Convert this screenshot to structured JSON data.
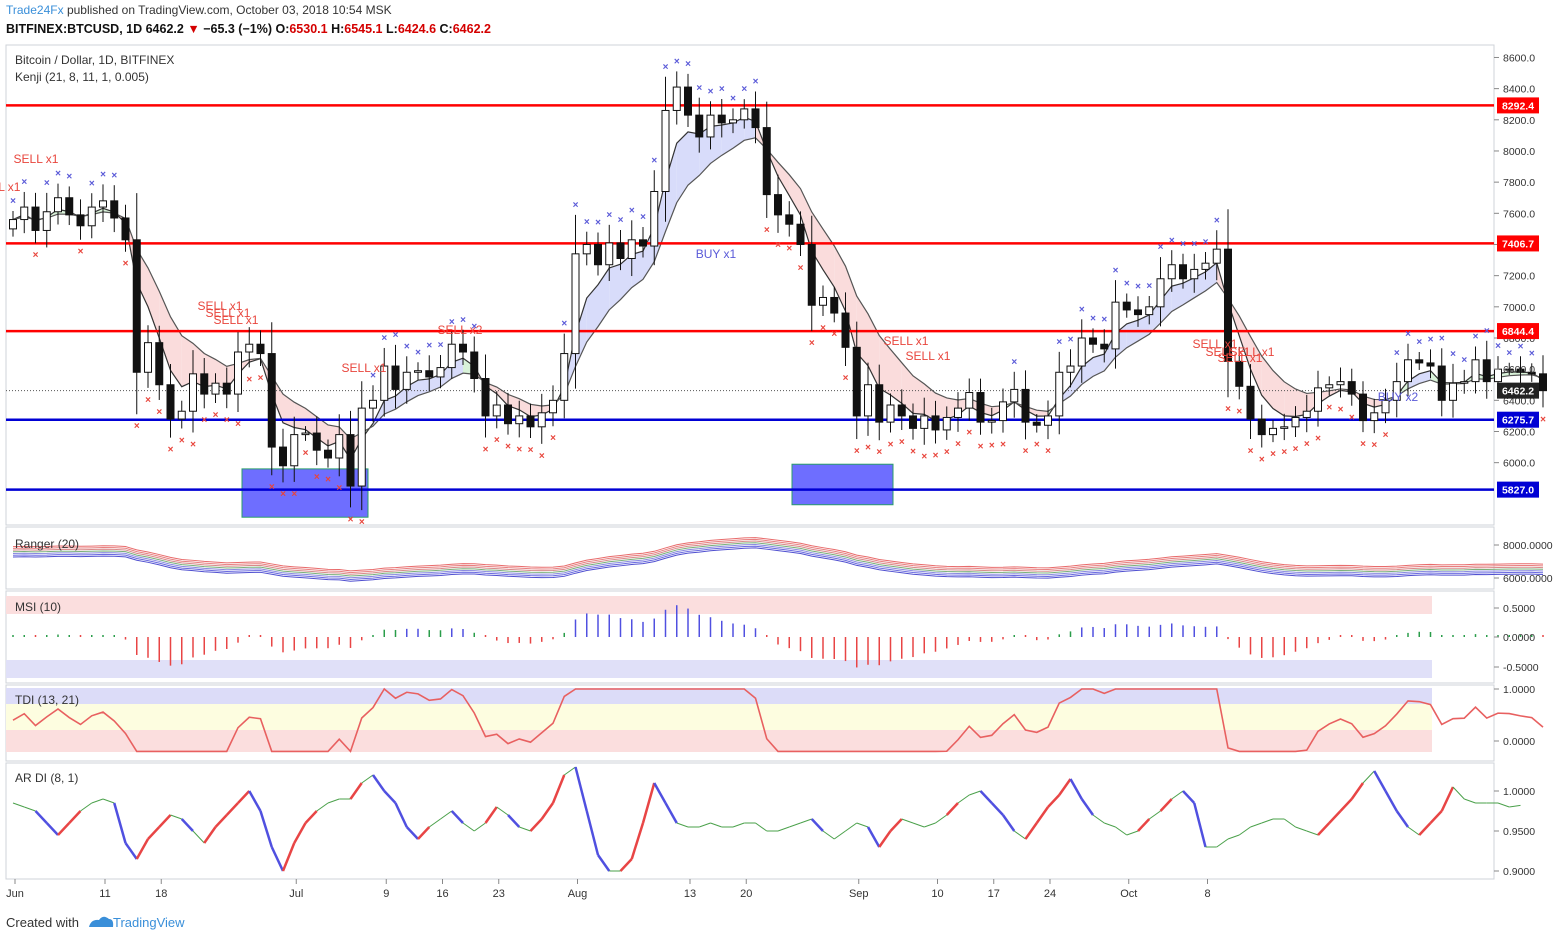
{
  "header": {
    "brand": "Trade24Fx",
    "published": "published on TradingView.com, October 03, 2018 10:54 MSK",
    "symbol": "BITFINEX:BTCUSD, 1D",
    "last": "6462.2",
    "change": "−65.3 (−1%)",
    "o_label": "O:",
    "o": "6530.1",
    "h_label": "H:",
    "h": "6545.1",
    "l_label": "L:",
    "l": "6424.6",
    "c_label": "C:",
    "c": "6462.2"
  },
  "footer": {
    "created": "Created with",
    "tv": "TradingView"
  },
  "icons": [
    "tradingview-cloud-icon"
  ],
  "colors": {
    "resistance": "#ff0000",
    "support": "#0000d4",
    "sell": "#e8453c",
    "buy": "#5a5ad8",
    "box": "#5555ff"
  },
  "chart_data": [
    {
      "type": "candlestick",
      "title": "Bitcoin / Dollar, 1D, BITFINEX",
      "indicator": "Kenji (21, 8, 11, 1, 0.005)",
      "x_ticks": [
        "Jun",
        "11",
        "18",
        "Jul",
        "9",
        "16",
        "23",
        "Aug",
        "13",
        "20",
        "Sep",
        "10",
        "17",
        "24",
        "Oct",
        "8"
      ],
      "y_ticks": [
        "8600.0",
        "8400.0",
        "8200.0",
        "8000.0",
        "7800.0",
        "7600.0",
        "7400.0",
        "7200.0",
        "7000.0",
        "6800.0",
        "6600.0",
        "6400.0",
        "6200.0",
        "6000.0"
      ],
      "ylim": [
        5600,
        8680
      ],
      "levels": [
        {
          "value": 8292.4,
          "label": "8292.4",
          "kind": "resistance"
        },
        {
          "value": 7406.7,
          "label": "7406.7",
          "kind": "resistance"
        },
        {
          "value": 6844.4,
          "label": "6844.4",
          "kind": "resistance"
        },
        {
          "value": 6462.2,
          "label": "6462.2",
          "kind": "last"
        },
        {
          "value": 6275.7,
          "label": "6275.7",
          "kind": "support"
        },
        {
          "value": 5827.0,
          "label": "5827.0",
          "kind": "support"
        }
      ],
      "signals": [
        {
          "text": "SELL x1",
          "kind": "sell"
        },
        {
          "text": "LL x1",
          "kind": "sell"
        },
        {
          "text": "SELL x1",
          "kind": "sell"
        },
        {
          "text": "SELL x1",
          "kind": "sell"
        },
        {
          "text": "SELL x1",
          "kind": "sell"
        },
        {
          "text": "SELL x2",
          "kind": "sell"
        },
        {
          "text": "SELL x1",
          "kind": "sell"
        },
        {
          "text": "BUY x1",
          "kind": "buy"
        },
        {
          "text": "SELL x1",
          "kind": "sell"
        },
        {
          "text": "SELL x1",
          "kind": "sell"
        },
        {
          "text": "SELL x1",
          "kind": "sell"
        },
        {
          "text": "SELL x1",
          "kind": "sell"
        },
        {
          "text": "SELL x1",
          "kind": "sell"
        },
        {
          "text": "SELL x1",
          "kind": "sell"
        },
        {
          "text": "BUY x2",
          "kind": "buy"
        }
      ],
      "closes": [
        7560,
        7640,
        7490,
        7610,
        7700,
        7590,
        7520,
        7640,
        7680,
        7570,
        7430,
        6580,
        6770,
        6500,
        6280,
        6330,
        6570,
        6440,
        6510,
        6440,
        6710,
        6760,
        6700,
        6100,
        5980,
        6180,
        6190,
        6080,
        6030,
        6180,
        5850,
        6350,
        6400,
        6620,
        6470,
        6580,
        6590,
        6550,
        6610,
        6760,
        6710,
        6540,
        6300,
        6370,
        6250,
        6300,
        6230,
        6320,
        6400,
        6700,
        7340,
        7400,
        7270,
        7410,
        7310,
        7430,
        7390,
        7740,
        8260,
        8410,
        8230,
        8090,
        8230,
        8180,
        8200,
        8270,
        8150,
        7720,
        7590,
        7530,
        7400,
        7010,
        7060,
        6960,
        6740,
        6300,
        6500,
        6260,
        6370,
        6300,
        6220,
        6300,
        6210,
        6290,
        6350,
        6450,
        6260,
        6270,
        6390,
        6470,
        6260,
        6240,
        6300,
        6580,
        6620,
        6800,
        6760,
        6730,
        7030,
        6980,
        6950,
        7000,
        7180,
        7270,
        7180,
        7240,
        7280,
        7370,
        6650,
        6490,
        6280,
        6180,
        6220,
        6230,
        6290,
        6330,
        6480,
        6500,
        6520,
        6440,
        6270,
        6320,
        6400,
        6520,
        6660,
        6640,
        6620,
        6400,
        6510,
        6520,
        6660,
        6520,
        6600,
        6600,
        6580,
        6570,
        6462
      ]
    },
    {
      "type": "line",
      "title": "Ranger (20)",
      "y_ticks": [
        "8000.0000",
        "6000.0000"
      ]
    },
    {
      "type": "bar",
      "title": "MSI (10)",
      "y_ticks": [
        "0.5000",
        "0.0000",
        "-0.5000"
      ]
    },
    {
      "type": "line",
      "title": "TDI (13, 21)",
      "y_ticks": [
        "1.0000",
        "0.0000"
      ]
    },
    {
      "type": "line",
      "title": "AR DI (8, 1)",
      "y_ticks": [
        "1.0000",
        "0.9500",
        "0.9000"
      ],
      "ylim": [
        0.89,
        1.035
      ],
      "values": [
        0.985,
        0.98,
        0.975,
        0.96,
        0.945,
        0.96,
        0.975,
        0.985,
        0.99,
        0.985,
        0.935,
        0.915,
        0.94,
        0.955,
        0.97,
        0.965,
        0.95,
        0.935,
        0.955,
        0.97,
        0.985,
        1.0,
        0.975,
        0.93,
        0.9,
        0.935,
        0.96,
        0.975,
        0.985,
        0.99,
        0.99,
        1.01,
        1.02,
        1.0,
        0.985,
        0.955,
        0.94,
        0.955,
        0.965,
        0.975,
        0.96,
        0.95,
        0.96,
        0.98,
        0.97,
        0.955,
        0.95,
        0.965,
        0.985,
        1.02,
        1.03,
        0.975,
        0.92,
        0.9,
        0.9,
        0.915,
        0.96,
        1.01,
        0.985,
        0.96,
        0.955,
        0.955,
        0.96,
        0.955,
        0.955,
        0.96,
        0.96,
        0.95,
        0.95,
        0.955,
        0.96,
        0.965,
        0.95,
        0.94,
        0.95,
        0.96,
        0.955,
        0.93,
        0.95,
        0.965,
        0.96,
        0.955,
        0.96,
        0.97,
        0.985,
        0.995,
        1.0,
        0.985,
        0.97,
        0.95,
        0.94,
        0.96,
        0.98,
        0.995,
        1.015,
        0.99,
        0.97,
        0.96,
        0.955,
        0.945,
        0.95,
        0.965,
        0.975,
        0.99,
        1.0,
        0.985,
        0.93,
        0.93,
        0.94,
        0.945,
        0.955,
        0.96,
        0.965,
        0.965,
        0.955,
        0.95,
        0.945,
        0.96,
        0.975,
        0.99,
        1.01,
        1.025,
        1.0,
        0.975,
        0.955,
        0.945,
        0.96,
        0.975,
        1.005,
        0.99,
        0.985,
        0.985,
        0.985,
        0.98,
        0.982
      ]
    }
  ]
}
